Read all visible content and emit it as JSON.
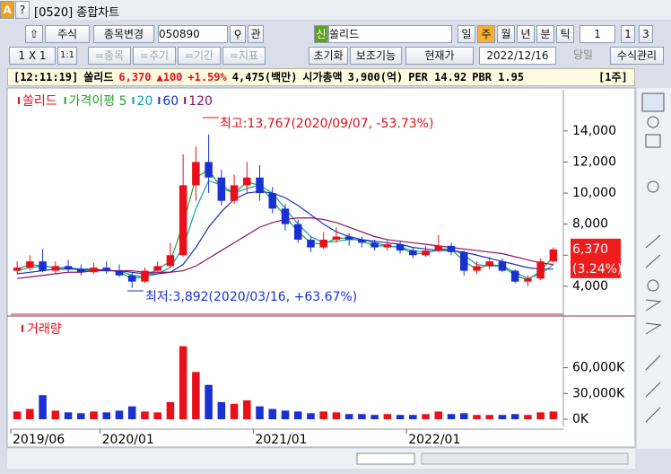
{
  "window": {
    "icon": "A",
    "help": "?",
    "title": "[0520] 종합차트"
  },
  "toolbar": {
    "market": "주식",
    "change": "종목변경",
    "code": "050890",
    "watch": "관",
    "badge": "신",
    "name": "쏠리드",
    "periods": [
      "일",
      "주",
      "월",
      "년",
      "분",
      "틱"
    ],
    "count": "1",
    "quick": [
      "1",
      "3"
    ],
    "layout": "1 X 1",
    "ratio": "1:1",
    "sync": [
      "=종목",
      "=주기",
      "=기간",
      "=지표"
    ],
    "buttons": [
      "초기화",
      "보조기능",
      "현재가"
    ],
    "date": "2022/12/16",
    "today": "당일",
    "formula": "수식관리"
  },
  "info": {
    "time": "[12:11:19]",
    "name": "쏠리드",
    "price": "6,370",
    "change": "▲100",
    "rate": "+1.59%",
    "amount": "4,475(백만)",
    "cap_label": "시가총액",
    "cap": "3,900(억)",
    "per": "PER 14.92",
    "pbr": "PBR 1.95",
    "period": "[1주]"
  },
  "chart_data": [
    {
      "type": "candlestick",
      "name": "쏠리드",
      "up_color": "#e8101a",
      "down_color": "#1a30d0",
      "categories": [
        "2019/06",
        null,
        null,
        null,
        null,
        null,
        null,
        "2020/01",
        null,
        null,
        null,
        null,
        null,
        null,
        null,
        null,
        null,
        null,
        null,
        "2021/01",
        null,
        null,
        null,
        null,
        null,
        null,
        null,
        null,
        null,
        null,
        null,
        "2022/01",
        null,
        null,
        null,
        null,
        null,
        null,
        null,
        null,
        null,
        null,
        null
      ],
      "open": [
        5000,
        5200,
        5600,
        5000,
        5300,
        5100,
        4900,
        5200,
        5000,
        4700,
        4300,
        5000,
        5300,
        6000,
        10500,
        12000,
        11000,
        9500,
        10500,
        11000,
        10000,
        9000,
        8000,
        7000,
        6500,
        7000,
        7200,
        7000,
        6800,
        6500,
        6700,
        6300,
        6000,
        6300,
        6600,
        6200,
        5000,
        5300,
        5600,
        5000,
        4300,
        4500,
        5600
      ],
      "high": [
        5600,
        6000,
        6400,
        5600,
        5700,
        5400,
        5500,
        5600,
        5400,
        4900,
        5200,
        5600,
        6800,
        12500,
        13000,
        13767,
        11500,
        11200,
        12000,
        11800,
        10400,
        9300,
        8300,
        7200,
        7500,
        7800,
        7400,
        7200,
        7000,
        7000,
        6900,
        6500,
        6600,
        7300,
        6800,
        6300,
        5600,
        5900,
        5800,
        5100,
        4700,
        5800,
        6500
      ],
      "low": [
        4800,
        5000,
        4900,
        4800,
        4900,
        4700,
        4800,
        4800,
        4600,
        3892,
        4200,
        4900,
        5200,
        5900,
        9500,
        10000,
        9200,
        9300,
        10000,
        9500,
        8700,
        7600,
        6800,
        6200,
        6400,
        6800,
        6600,
        6500,
        6300,
        6300,
        6100,
        5800,
        5900,
        6200,
        6000,
        4700,
        4800,
        5100,
        4900,
        4200,
        4000,
        4400,
        5500
      ],
      "close": [
        5200,
        5600,
        5000,
        5300,
        5100,
        4900,
        5200,
        5000,
        4700,
        4300,
        5000,
        5300,
        6000,
        10500,
        12000,
        11000,
        9500,
        10500,
        11000,
        10000,
        9000,
        8000,
        7000,
        6500,
        7000,
        7200,
        7000,
        6800,
        6500,
        6700,
        6300,
        6000,
        6300,
        6600,
        6200,
        5000,
        5300,
        5600,
        5000,
        4300,
        4500,
        5600,
        6370
      ],
      "series": [
        {
          "name": "가격이평 5",
          "color": "#2aa02a",
          "values": [
            5100,
            5400,
            5300,
            5200,
            5200,
            5000,
            5000,
            5100,
            4900,
            4500,
            4600,
            5100,
            5600,
            8000,
            11000,
            11500,
            10300,
            10000,
            10700,
            10500,
            9500,
            8500,
            7500,
            6800,
            6700,
            7100,
            7100,
            6900,
            6600,
            6600,
            6500,
            6100,
            6100,
            6400,
            6400,
            5600,
            5100,
            5400,
            5300,
            4700,
            4400,
            5000,
            5900
          ]
        },
        {
          "name": "20",
          "color": "#10a0b0",
          "values": [
            5000,
            5200,
            5300,
            5200,
            5200,
            5100,
            5000,
            5000,
            5000,
            4700,
            4600,
            4800,
            5200,
            6500,
            9000,
            10800,
            10500,
            10000,
            10300,
            10500,
            10000,
            9000,
            8000,
            7200,
            6800,
            6900,
            7000,
            7000,
            6800,
            6600,
            6500,
            6300,
            6200,
            6300,
            6400,
            6000,
            5400,
            5300,
            5300,
            4900,
            4500,
            4800,
            5400
          ]
        },
        {
          "name": "60",
          "color": "#1830c0",
          "values": [
            4800,
            4900,
            5000,
            5100,
            5100,
            5100,
            5100,
            5000,
            5000,
            4900,
            4800,
            4800,
            4900,
            5400,
            6500,
            7800,
            8800,
            9600,
            10000,
            10100,
            10000,
            9700,
            9200,
            8600,
            8000,
            7500,
            7200,
            7000,
            6900,
            6800,
            6700,
            6500,
            6400,
            6300,
            6300,
            6200,
            6000,
            5800,
            5600,
            5400,
            5200,
            5100,
            5100
          ]
        },
        {
          "name": "120",
          "color": "#901060",
          "values": [
            4500,
            4600,
            4700,
            4800,
            4900,
            4900,
            5000,
            5000,
            5000,
            5000,
            4900,
            4900,
            4900,
            5000,
            5300,
            5800,
            6300,
            6800,
            7300,
            7800,
            8100,
            8300,
            8400,
            8400,
            8300,
            8100,
            7800,
            7500,
            7200,
            7000,
            6900,
            6800,
            6700,
            6600,
            6500,
            6400,
            6300,
            6200,
            6100,
            5900,
            5700,
            5500,
            5400
          ]
        }
      ],
      "ylim": [
        2200,
        16650
      ],
      "yticks": [
        {
          "value": 4000,
          "label": "4,000"
        },
        {
          "value": 6000,
          "label": "6,000"
        },
        {
          "value": 8000,
          "label": "8,000"
        },
        {
          "value": 10000,
          "label": "10,000"
        },
        {
          "value": 12000,
          "label": "12,000"
        },
        {
          "value": 14000,
          "label": "14,000"
        }
      ],
      "annotations": [
        "최고:13,767(2020/09/07, -53.73%)",
        "최저:3,892(2020/03/16, +63.67%)"
      ],
      "last_label": {
        "value": 6370,
        "label": "6,370",
        "rate": "(3.24%)"
      }
    },
    {
      "type": "bar",
      "name": "거래량",
      "values": [
        9000,
        12000,
        28000,
        10000,
        8000,
        7000,
        9000,
        8000,
        10000,
        15000,
        9000,
        8000,
        20000,
        85000,
        55000,
        40000,
        20000,
        18000,
        22000,
        15000,
        12000,
        10000,
        9000,
        7000,
        9000,
        8000,
        6000,
        6000,
        5000,
        6000,
        5000,
        5000,
        6000,
        9000,
        6000,
        7000,
        5000,
        5000,
        5000,
        6000,
        5000,
        8000,
        9000
      ],
      "ylim": [
        0,
        116000
      ],
      "yticks": [
        {
          "value": 0,
          "label": "0K"
        },
        {
          "value": 30000,
          "label": "30,000K"
        },
        {
          "value": 60000,
          "label": "60,000K"
        }
      ]
    }
  ]
}
